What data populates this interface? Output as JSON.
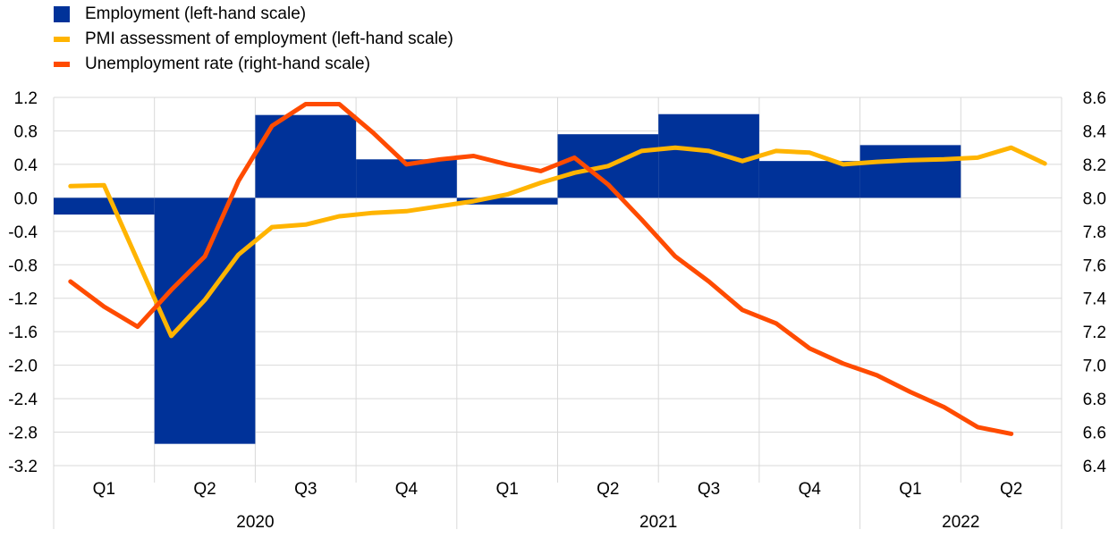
{
  "chart_data": {
    "type": "bar+line",
    "legend": [
      {
        "label": "Employment (left-hand scale)",
        "color": "#003299",
        "kind": "box"
      },
      {
        "label": "PMI assessment of employment (left-hand scale)",
        "color": "#FFB400",
        "kind": "line"
      },
      {
        "label": "Unemployment rate (right-hand scale)",
        "color": "#FF4B00",
        "kind": "line"
      }
    ],
    "legend_position": "top-left",
    "grid": true,
    "left_axis": {
      "min": -3.2,
      "max": 1.2,
      "step": 0.4,
      "ticks": [
        "-3.2",
        "-2.8",
        "-2.4",
        "-2.0",
        "-1.6",
        "-1.2",
        "-0.8",
        "-0.4",
        "0.0",
        "0.4",
        "0.8",
        "1.2"
      ]
    },
    "right_axis": {
      "min": 6.4,
      "max": 8.6,
      "step": 0.2,
      "ticks": [
        "6.4",
        "6.6",
        "6.8",
        "7.0",
        "7.2",
        "7.4",
        "7.6",
        "7.8",
        "8.0",
        "8.2",
        "8.4",
        "8.6"
      ]
    },
    "quarters": [
      "Q1",
      "Q2",
      "Q3",
      "Q4",
      "Q1",
      "Q2",
      "Q3",
      "Q4",
      "Q1",
      "Q2"
    ],
    "years": [
      {
        "label": "2020",
        "span": [
          0,
          4
        ]
      },
      {
        "label": "2021",
        "span": [
          4,
          8
        ]
      },
      {
        "label": "2022",
        "span": [
          8,
          10
        ]
      }
    ],
    "employment": {
      "name": "Employment (left-hand scale)",
      "values": [
        -0.2,
        -2.94,
        0.99,
        0.46,
        -0.08,
        0.76,
        1.0,
        0.44,
        0.63,
        null
      ]
    },
    "pmi": {
      "name": "PMI assessment of employment (left-hand scale)",
      "x_monthly_index": [
        0,
        1,
        2,
        3,
        4,
        5,
        6,
        7,
        8,
        9,
        10,
        11,
        12,
        13,
        14,
        15,
        16,
        17,
        18,
        19,
        20,
        21,
        22,
        23,
        24,
        25,
        26,
        27,
        28,
        29
      ],
      "values": [
        0.14,
        0.15,
        -0.75,
        -1.65,
        -1.22,
        -0.68,
        -0.35,
        -0.32,
        -0.22,
        -0.18,
        -0.16,
        -0.1,
        -0.04,
        0.04,
        0.18,
        0.3,
        0.38,
        0.56,
        0.6,
        0.56,
        0.44,
        0.56,
        0.54,
        0.4,
        0.43,
        0.45,
        0.46,
        0.48,
        0.6,
        0.41
      ]
    },
    "unemployment": {
      "name": "Unemployment rate (right-hand scale)",
      "x_monthly_index": [
        0,
        1,
        2,
        3,
        4,
        5,
        6,
        7,
        8,
        9,
        10,
        11,
        12,
        13,
        14,
        15,
        16,
        17,
        18,
        19,
        20,
        21,
        22,
        23,
        24,
        25,
        26,
        27,
        28
      ],
      "values": [
        7.5,
        7.35,
        7.23,
        7.45,
        7.65,
        8.1,
        8.43,
        8.56,
        8.56,
        8.39,
        8.2,
        8.23,
        8.25,
        8.2,
        8.16,
        8.24,
        8.08,
        7.87,
        7.65,
        7.5,
        7.33,
        7.25,
        7.1,
        7.01,
        6.94,
        6.84,
        6.75,
        6.63,
        6.59
      ]
    }
  }
}
